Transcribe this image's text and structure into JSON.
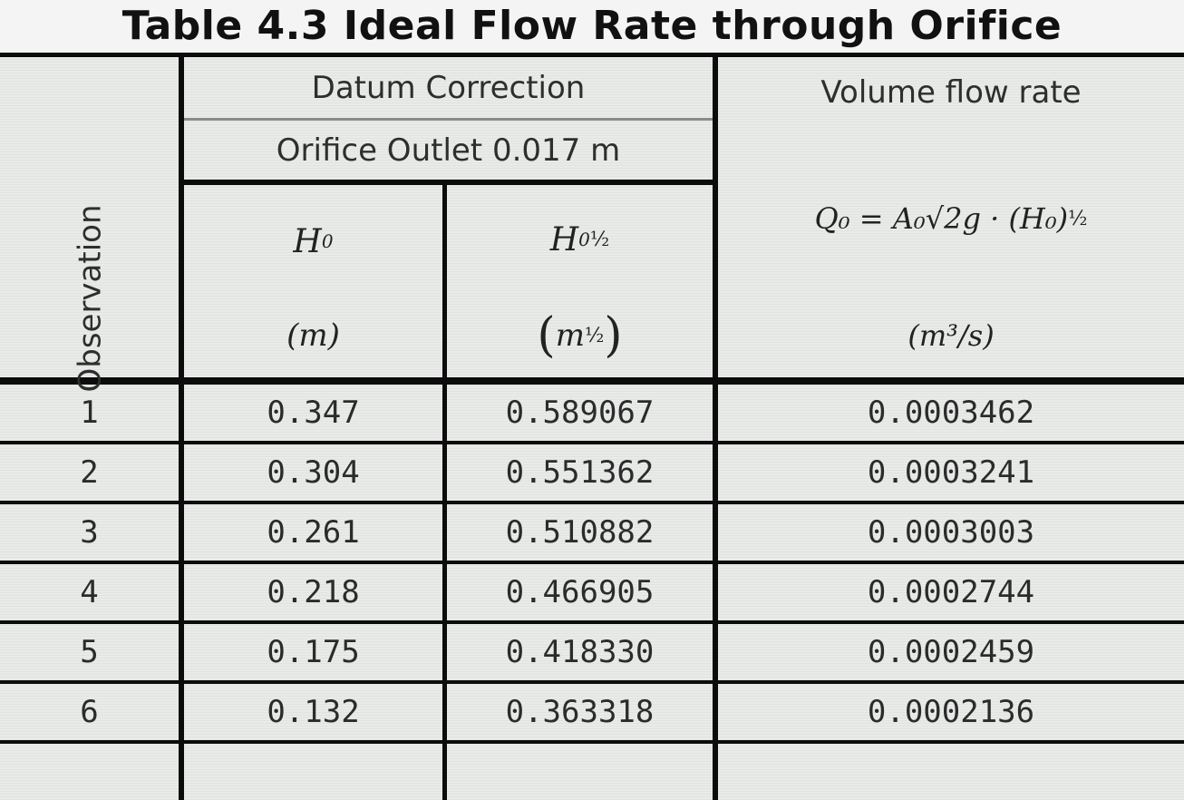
{
  "title": "Table 4.3 Ideal Flow Rate through Orifice",
  "headers": {
    "observation": "Observation",
    "datum_correction": "Datum Correction",
    "orifice_outlet": "Orifice Outlet 0.017 m",
    "volume_flow_rate": "Volume flow rate",
    "h0_symbol": "H",
    "h0_sub": "0",
    "h0_unit": "(m)",
    "h0_half_symbol": "H",
    "h0_half_sub": "0",
    "h0_half_exp": "½",
    "h0_half_unit_base": "m",
    "h0_half_unit_exp": "½",
    "formula": "Q₀ = A₀√2g · (H₀)",
    "formula_exp": "½",
    "q_unit": "(m³/s)"
  },
  "rows": [
    {
      "obs": "1",
      "h0": "0.347",
      "h0_half": "0.589067",
      "q": "0.0003462"
    },
    {
      "obs": "2",
      "h0": "0.304",
      "h0_half": "0.551362",
      "q": "0.0003241"
    },
    {
      "obs": "3",
      "h0": "0.261",
      "h0_half": "0.510882",
      "q": "0.0003003"
    },
    {
      "obs": "4",
      "h0": "0.218",
      "h0_half": "0.466905",
      "q": "0.0002744"
    },
    {
      "obs": "5",
      "h0": "0.175",
      "h0_half": "0.418330",
      "q": "0.0002459"
    },
    {
      "obs": "6",
      "h0": "0.132",
      "h0_half": "0.363318",
      "q": "0.0002136"
    }
  ]
}
